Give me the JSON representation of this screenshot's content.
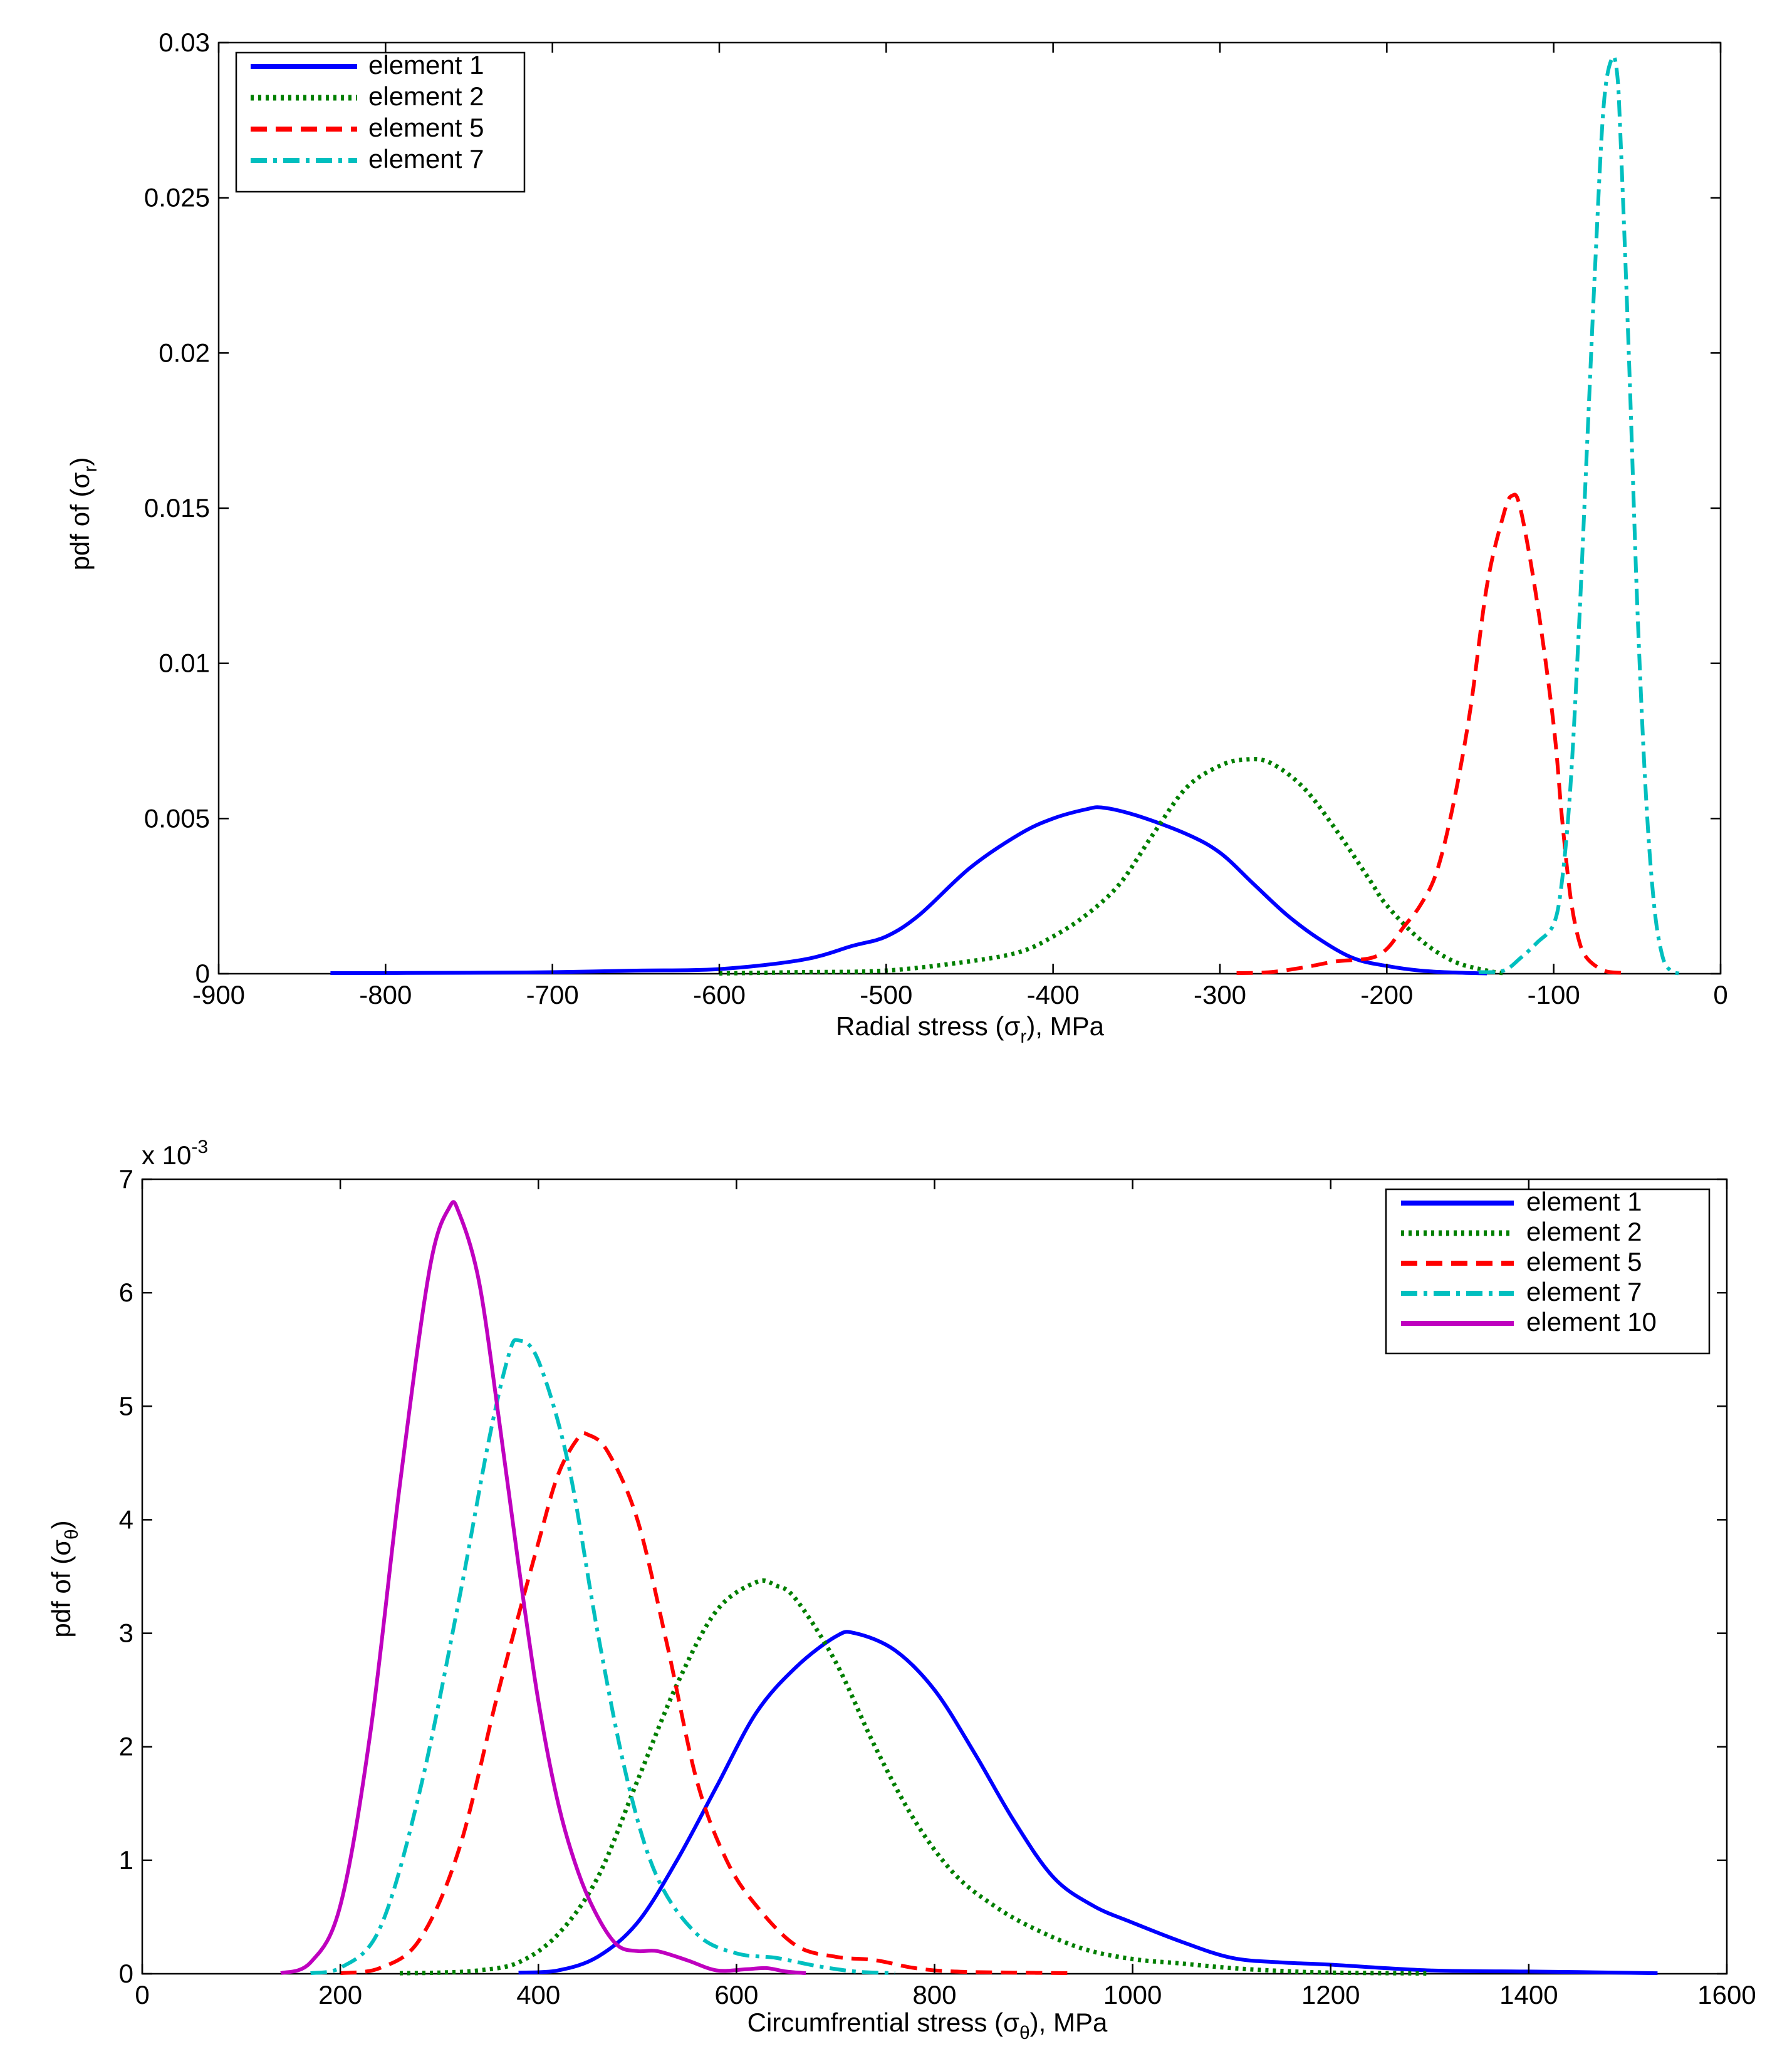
{
  "chart_data": [
    {
      "type": "line",
      "title": "",
      "xlabel_main": "Radial stress (σ",
      "xlabel_sub": "r",
      "xlabel_tail": "), MPa",
      "ylabel_main": "pdf of (σ",
      "ylabel_sub": "r",
      "ylabel_tail": ")",
      "xlim": [
        -900,
        0
      ],
      "ylim": [
        0,
        0.03
      ],
      "xticks": [
        -900,
        -800,
        -700,
        -600,
        -500,
        -400,
        -300,
        -200,
        -100,
        0
      ],
      "xtick_labels": [
        "-900",
        "-800",
        "-700",
        "-600",
        "-500",
        "-400",
        "-300",
        "-200",
        "-100",
        "0"
      ],
      "yticks": [
        0,
        0.005,
        0.01,
        0.015,
        0.02,
        0.025,
        0.03
      ],
      "ytick_labels": [
        "0",
        "0.005",
        "0.01",
        "0.015",
        "0.02",
        "0.025",
        "0.03"
      ],
      "legend_position": "top-left",
      "series": [
        {
          "name": "element 1",
          "color": "#0000ff",
          "style": "solid",
          "x": [
            -833,
            -750,
            -700,
            -650,
            -600,
            -550,
            -520,
            -500,
            -480,
            -450,
            -420,
            -400,
            -380,
            -370,
            -350,
            -320,
            -300,
            -280,
            -260,
            -240,
            -220,
            -200,
            -180,
            -160,
            -140
          ],
          "y": [
            2e-05,
            3e-05,
            5e-05,
            0.0001,
            0.00015,
            0.00045,
            0.0009,
            0.0012,
            0.0019,
            0.0034,
            0.0045,
            0.005,
            0.0053,
            0.00535,
            0.0051,
            0.0045,
            0.0039,
            0.0029,
            0.0019,
            0.0011,
            0.0005,
            0.00025,
            0.0001,
            4e-05,
            1e-05
          ]
        },
        {
          "name": "element 2",
          "color": "#007f00",
          "style": "dotted",
          "x": [
            -600,
            -550,
            -500,
            -450,
            -420,
            -400,
            -380,
            -360,
            -340,
            -320,
            -300,
            -285,
            -270,
            -250,
            -230,
            -210,
            -200,
            -180,
            -160,
            -140,
            -130
          ],
          "y": [
            1e-05,
            5e-05,
            0.0001,
            0.0004,
            0.0007,
            0.0012,
            0.0019,
            0.0029,
            0.0045,
            0.006,
            0.0067,
            0.0069,
            0.0068,
            0.006,
            0.0046,
            0.003,
            0.0022,
            0.0011,
            0.0004,
            0.0001,
            2e-05
          ]
        },
        {
          "name": "element 5",
          "color": "#ff0000",
          "style": "dashed",
          "x": [
            -290,
            -270,
            -250,
            -230,
            -210,
            -200,
            -190,
            -180,
            -170,
            -160,
            -150,
            -140,
            -130,
            -125,
            -120,
            -110,
            -100,
            -95,
            -90,
            -85,
            -80,
            -70,
            -60,
            -55
          ],
          "y": [
            2e-05,
            5e-05,
            0.0002,
            0.0004,
            0.0005,
            0.0008,
            0.0015,
            0.0022,
            0.0033,
            0.0055,
            0.0085,
            0.0125,
            0.0148,
            0.0154,
            0.015,
            0.012,
            0.008,
            0.005,
            0.0025,
            0.0011,
            0.0005,
            0.0001,
            3e-05,
            1e-05
          ]
        },
        {
          "name": "element 7",
          "color": "#00bfbf",
          "style": "dashdot",
          "x": [
            -145,
            -130,
            -120,
            -110,
            -100,
            -95,
            -90,
            -85,
            -80,
            -75,
            -70,
            -65,
            -62,
            -60,
            -55,
            -50,
            -45,
            -40,
            -35,
            -30,
            -25
          ],
          "y": [
            5e-05,
            0.0001,
            0.0005,
            0.001,
            0.0016,
            0.003,
            0.006,
            0.011,
            0.017,
            0.023,
            0.028,
            0.0295,
            0.029,
            0.027,
            0.02,
            0.012,
            0.006,
            0.0023,
            0.0006,
            0.0001,
            1e-05
          ]
        }
      ]
    },
    {
      "type": "line",
      "title": "",
      "xlabel_main": "Circumfrential stress (σ",
      "xlabel_sub": "θ",
      "xlabel_tail": "), MPa",
      "ylabel_main": "pdf of (σ",
      "ylabel_sub": "θ",
      "ylabel_tail": ")",
      "multiplier_main": "x 10",
      "multiplier_exp": "-3",
      "xlim": [
        0,
        1600
      ],
      "ylim": [
        0,
        7
      ],
      "xticks": [
        0,
        200,
        400,
        600,
        800,
        1000,
        1200,
        1400,
        1600
      ],
      "xtick_labels": [
        "0",
        "200",
        "400",
        "600",
        "800",
        "1000",
        "1200",
        "1400",
        "1600"
      ],
      "yticks": [
        0,
        1,
        2,
        3,
        4,
        5,
        6,
        7
      ],
      "ytick_labels": [
        "0",
        "1",
        "2",
        "3",
        "4",
        "5",
        "6",
        "7"
      ],
      "legend_position": "top-right",
      "series": [
        {
          "name": "element 1",
          "color": "#0000ff",
          "style": "solid",
          "x": [
            380,
            420,
            460,
            500,
            540,
            580,
            620,
            660,
            700,
            720,
            760,
            800,
            840,
            880,
            920,
            960,
            1000,
            1050,
            1100,
            1150,
            1200,
            1300,
            1400,
            1450,
            1530
          ],
          "y": [
            0.01,
            0.03,
            0.15,
            0.45,
            1.0,
            1.65,
            2.3,
            2.7,
            2.97,
            3.0,
            2.85,
            2.5,
            1.95,
            1.35,
            0.85,
            0.6,
            0.45,
            0.28,
            0.14,
            0.1,
            0.08,
            0.03,
            0.02,
            0.015,
            0.005
          ]
        },
        {
          "name": "element 2",
          "color": "#007f00",
          "style": "dotted",
          "x": [
            260,
            300,
            340,
            380,
            420,
            460,
            500,
            540,
            580,
            620,
            640,
            660,
            700,
            740,
            780,
            820,
            860,
            900,
            950,
            1000,
            1050,
            1100,
            1150,
            1200,
            1300
          ],
          "y": [
            0.005,
            0.01,
            0.03,
            0.1,
            0.35,
            0.85,
            1.7,
            2.55,
            3.2,
            3.45,
            3.42,
            3.3,
            2.75,
            2.0,
            1.35,
            0.88,
            0.6,
            0.4,
            0.22,
            0.13,
            0.09,
            0.05,
            0.025,
            0.01,
            0.003
          ]
        },
        {
          "name": "element 5",
          "color": "#ff0000",
          "style": "dashed",
          "x": [
            200,
            240,
            280,
            320,
            360,
            400,
            420,
            440,
            450,
            470,
            500,
            530,
            560,
            590,
            620,
            660,
            700,
            740,
            780,
            820,
            880,
            940
          ],
          "y": [
            0.005,
            0.05,
            0.3,
            1.1,
            2.5,
            3.8,
            4.4,
            4.72,
            4.75,
            4.6,
            4.0,
            2.9,
            1.7,
            1.0,
            0.6,
            0.25,
            0.15,
            0.12,
            0.05,
            0.02,
            0.01,
            0.005
          ]
        },
        {
          "name": "element 7",
          "color": "#00bfbf",
          "style": "dashdot",
          "x": [
            170,
            200,
            240,
            280,
            320,
            350,
            370,
            380,
            400,
            430,
            460,
            490,
            520,
            560,
            600,
            640,
            680,
            720,
            760
          ],
          "y": [
            0.005,
            0.05,
            0.4,
            1.6,
            3.3,
            4.7,
            5.45,
            5.58,
            5.4,
            4.5,
            3.0,
            1.7,
            0.85,
            0.35,
            0.18,
            0.14,
            0.07,
            0.02,
            0.005
          ]
        },
        {
          "name": "element 10",
          "color": "#bf00bf",
          "style": "solid",
          "x": [
            140,
            170,
            200,
            230,
            260,
            290,
            310,
            320,
            340,
            360,
            380,
            400,
            420,
            440,
            460,
            480,
            500,
            520,
            550,
            580,
            610,
            630,
            650,
            670
          ],
          "y": [
            0.005,
            0.1,
            0.6,
            2.1,
            4.3,
            6.2,
            6.75,
            6.7,
            6.1,
            4.9,
            3.6,
            2.4,
            1.5,
            0.9,
            0.5,
            0.25,
            0.2,
            0.2,
            0.12,
            0.03,
            0.04,
            0.05,
            0.02,
            0.005
          ]
        }
      ]
    }
  ]
}
